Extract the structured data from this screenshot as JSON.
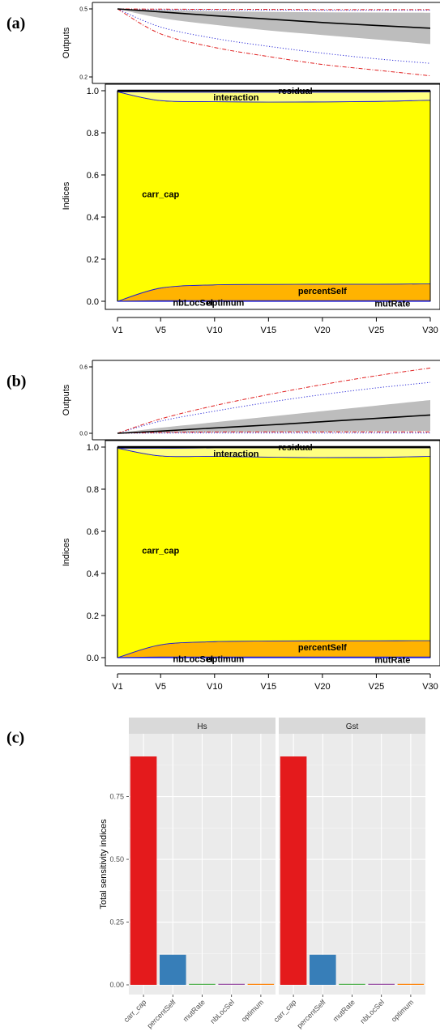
{
  "panel_labels": [
    "(a)",
    "(b)",
    "(c)"
  ],
  "chart_data": [
    {
      "panel": "(a)",
      "type": "area",
      "outputs": {
        "ylabel": "Outputs",
        "ylim": [
          0.2,
          0.5
        ],
        "yticks": [
          0.2,
          0.5
        ],
        "x": [
          1,
          5,
          10,
          15,
          20,
          25,
          30
        ],
        "mean": [
          0.5,
          0.487,
          0.47,
          0.455,
          0.44,
          0.427,
          0.415
        ],
        "band_upper": [
          0.5,
          0.495,
          0.49,
          0.487,
          0.485,
          0.484,
          0.483
        ],
        "band_lower": [
          0.5,
          0.46,
          0.43,
          0.405,
          0.385,
          0.365,
          0.345
        ],
        "blue_dotted_upper": [
          0.5,
          0.497,
          0.496,
          0.495,
          0.494,
          0.494,
          0.494
        ],
        "blue_dotted_lower": [
          0.5,
          0.42,
          0.37,
          0.335,
          0.305,
          0.28,
          0.26
        ],
        "red_dashdot_upper": [
          0.5,
          0.499,
          0.498,
          0.498,
          0.497,
          0.497,
          0.497
        ],
        "red_dashdot_lower": [
          0.5,
          0.39,
          0.33,
          0.29,
          0.255,
          0.23,
          0.205
        ]
      },
      "indices": {
        "ylabel": "Indices",
        "xlabel": "",
        "ylim": [
          0,
          1
        ],
        "yticks": [
          "0.0",
          "0.2",
          "0.4",
          "0.6",
          "0.8",
          "1.0"
        ],
        "xticks": [
          "V1",
          "V5",
          "V10",
          "V15",
          "V20",
          "V25",
          "V30"
        ],
        "x": [
          1,
          5,
          10,
          15,
          20,
          25,
          30
        ],
        "stack_order": [
          "nbLocSel",
          "optimum",
          "mutRate",
          "percentSelf",
          "carr_cap",
          "interaction",
          "residual"
        ],
        "series": [
          {
            "name": "nbLocSel",
            "values": [
              0.0,
              0.001,
              0.001,
              0.001,
              0.001,
              0.001,
              0.001
            ],
            "color": "#1f1fd0"
          },
          {
            "name": "optimum",
            "values": [
              0.0,
              0.001,
              0.001,
              0.001,
              0.001,
              0.001,
              0.001
            ],
            "color": "#1f1fd0"
          },
          {
            "name": "mutRate",
            "values": [
              0.0,
              0.001,
              0.001,
              0.001,
              0.001,
              0.001,
              0.001
            ],
            "color": "#1f1fd0"
          },
          {
            "name": "percentSelf",
            "values": [
              0.0,
              0.06,
              0.075,
              0.077,
              0.078,
              0.078,
              0.08
            ],
            "color": "#ffb300"
          },
          {
            "name": "carr_cap",
            "values": [
              0.995,
              0.89,
              0.87,
              0.866,
              0.866,
              0.868,
              0.872
            ],
            "color": "#ffff00"
          },
          {
            "name": "interaction",
            "values": [
              0.0,
              0.04,
              0.045,
              0.047,
              0.046,
              0.044,
              0.04
            ],
            "color": "#ffff80"
          },
          {
            "name": "residual",
            "values": [
              0.005,
              0.005,
              0.006,
              0.006,
              0.006,
              0.006,
              0.004
            ],
            "color": "#ffffff"
          }
        ],
        "labels": [
          {
            "text": "residual",
            "x": 17.5,
            "y": 1.0
          },
          {
            "text": "interaction",
            "x": 12,
            "y": 0.97
          },
          {
            "text": "carr_cap",
            "x": 5,
            "y": 0.51
          },
          {
            "text": "percentSelf",
            "x": 20,
            "y": 0.05
          },
          {
            "text": "nbLocSel",
            "x": 8,
            "y": -0.005
          },
          {
            "text": "optimum",
            "x": 11,
            "y": -0.005
          },
          {
            "text": "mutRate",
            "x": 26.5,
            "y": -0.01
          }
        ]
      }
    },
    {
      "panel": "(b)",
      "type": "area",
      "outputs": {
        "ylabel": "Outputs",
        "ylim": [
          0.0,
          0.6
        ],
        "yticks": [
          0.0,
          0.6
        ],
        "x": [
          1,
          5,
          10,
          15,
          20,
          25,
          30
        ],
        "mean": [
          0.0,
          0.02,
          0.048,
          0.075,
          0.105,
          0.135,
          0.165
        ],
        "band_upper": [
          0.0,
          0.05,
          0.1,
          0.15,
          0.2,
          0.25,
          0.3
        ],
        "band_lower": [
          0.0,
          0.005,
          0.01,
          0.012,
          0.015,
          0.018,
          0.02
        ],
        "blue_dotted_upper": [
          0.0,
          0.11,
          0.2,
          0.28,
          0.35,
          0.41,
          0.46
        ],
        "blue_dotted_lower": [
          0.0,
          0.002,
          0.003,
          0.003,
          0.003,
          0.003,
          0.003
        ],
        "red_dashdot_upper": [
          0.0,
          0.13,
          0.25,
          0.35,
          0.44,
          0.52,
          0.59
        ],
        "red_dashdot_lower": [
          0.0,
          0.008,
          0.012,
          0.013,
          0.013,
          0.013,
          0.013
        ]
      },
      "indices": {
        "ylabel": "Indices",
        "xlabel": "",
        "ylim": [
          0,
          1
        ],
        "yticks": [
          "0.0",
          "0.2",
          "0.4",
          "0.6",
          "0.8",
          "1.0"
        ],
        "xticks": [
          "V1",
          "V5",
          "V10",
          "V15",
          "V20",
          "V25",
          "V30"
        ],
        "x": [
          1,
          5,
          10,
          15,
          20,
          25,
          30
        ],
        "stack_order": [
          "nbLocSel",
          "optimum",
          "mutRate",
          "percentSelf",
          "carr_cap",
          "interaction",
          "residual"
        ],
        "series": [
          {
            "name": "nbLocSel",
            "values": [
              0.0,
              0.001,
              0.001,
              0.001,
              0.001,
              0.001,
              0.001
            ],
            "color": "#1f1fd0"
          },
          {
            "name": "optimum",
            "values": [
              0.0,
              0.001,
              0.001,
              0.001,
              0.001,
              0.001,
              0.001
            ],
            "color": "#1f1fd0"
          },
          {
            "name": "mutRate",
            "values": [
              0.0,
              0.001,
              0.001,
              0.001,
              0.001,
              0.001,
              0.001
            ],
            "color": "#1f1fd0"
          },
          {
            "name": "percentSelf",
            "values": [
              0.0,
              0.058,
              0.073,
              0.076,
              0.077,
              0.077,
              0.078
            ],
            "color": "#ffb300"
          },
          {
            "name": "carr_cap",
            "values": [
              0.995,
              0.897,
              0.88,
              0.873,
              0.87,
              0.871,
              0.875
            ],
            "color": "#ffff00"
          },
          {
            "name": "interaction",
            "values": [
              0.0,
              0.036,
              0.04,
              0.044,
              0.046,
              0.045,
              0.041
            ],
            "color": "#ffff80"
          },
          {
            "name": "residual",
            "values": [
              0.005,
              0.006,
              0.004,
              0.004,
              0.004,
              0.004,
              0.003
            ],
            "color": "#ffffff"
          }
        ],
        "labels": [
          {
            "text": "residual",
            "x": 17.5,
            "y": 1.0
          },
          {
            "text": "interaction",
            "x": 12,
            "y": 0.97
          },
          {
            "text": "carr_cap",
            "x": 5,
            "y": 0.51
          },
          {
            "text": "percentSelf",
            "x": 20,
            "y": 0.05
          },
          {
            "text": "nbLocSel",
            "x": 8,
            "y": -0.005
          },
          {
            "text": "optimum",
            "x": 11,
            "y": -0.005
          },
          {
            "text": "mutRate",
            "x": 26.5,
            "y": -0.01
          }
        ]
      }
    },
    {
      "panel": "(c)",
      "type": "bar",
      "ylabel": "Total sensitivity indices",
      "ylim": [
        -0.02,
        1.0
      ],
      "yticks": [
        0.0,
        0.25,
        0.5,
        0.75
      ],
      "ytick_labels": [
        "0.00",
        "0.25",
        "0.50",
        "0.75"
      ],
      "categories": [
        "carr_cap",
        "percentSelf",
        "mutRate",
        "nbLocSel",
        "optimum"
      ],
      "colors": [
        "#e41a1c",
        "#377eb8",
        "#4daf4a",
        "#984ea3",
        "#ff7f00"
      ],
      "facets": [
        {
          "name": "Hs",
          "values": [
            0.91,
            0.12,
            0.002,
            0.004,
            0.001
          ]
        },
        {
          "name": "Gst",
          "values": [
            0.91,
            0.12,
            0.002,
            0.004,
            0.001
          ]
        }
      ]
    }
  ]
}
